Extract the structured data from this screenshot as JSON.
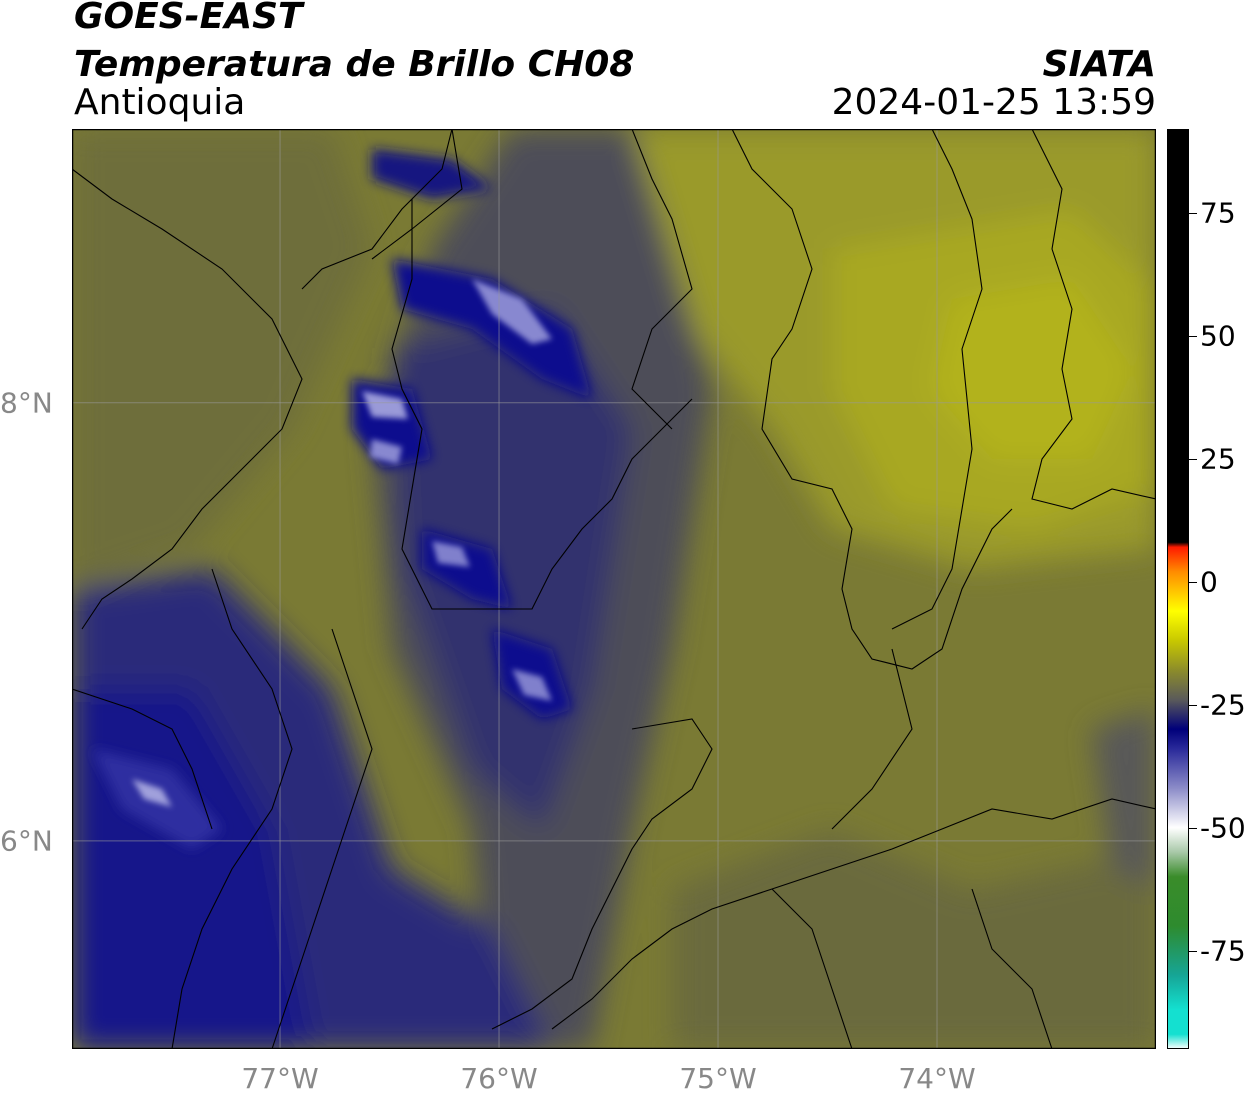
{
  "header": {
    "satellite": "GOES-EAST",
    "product": "Temperatura de Brillo CH08",
    "region": "Antioquia",
    "organization": "SIATA",
    "timestamp": "2024-01-25 13:59"
  },
  "map": {
    "lon_range": [
      -77.95,
      -73.0
    ],
    "lat_range": [
      5.05,
      9.25
    ],
    "x_ticks": [
      {
        "label": "77°W",
        "lon": -77
      },
      {
        "label": "76°W",
        "lon": -76
      },
      {
        "label": "75°W",
        "lon": -75
      },
      {
        "label": "74°W",
        "lon": -74
      }
    ],
    "y_ticks": [
      {
        "label": "8°N",
        "lat": 8
      },
      {
        "label": "6°N",
        "lat": 6
      }
    ],
    "gridlines": true
  },
  "colorbar": {
    "min": -95,
    "max": 92,
    "ticks": [
      {
        "label": "75",
        "value": 75
      },
      {
        "label": "50",
        "value": 50
      },
      {
        "label": "25",
        "value": 25
      },
      {
        "label": "0",
        "value": 0
      },
      {
        "label": "-25",
        "value": -25
      },
      {
        "label": "-50",
        "value": -50
      },
      {
        "label": "-75",
        "value": -75
      }
    ],
    "colors": {
      "cold_cyan": "#14e0d0",
      "green": "#2e8b2e",
      "white": "#ffffff",
      "blue_dark": "#00007a",
      "gray": "#5a5a5a",
      "olive": "#8c8c2a",
      "yellow": "#ffff00",
      "orange": "#ff8c00",
      "red": "#ff1a00",
      "black": "#000000"
    }
  }
}
